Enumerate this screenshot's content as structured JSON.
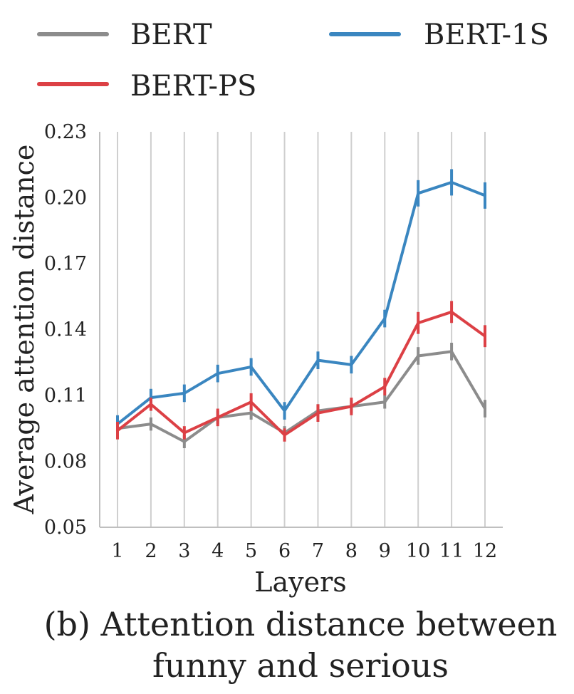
{
  "chart_data": {
    "type": "line",
    "title": "",
    "caption_lines": [
      "(b) Attention distance between",
      "funny and serious"
    ],
    "xlabel": "Layers",
    "ylabel": "Average attention distance",
    "x": [
      1,
      2,
      3,
      4,
      5,
      6,
      7,
      8,
      9,
      10,
      11,
      12
    ],
    "x_tick_labels": [
      "1",
      "2",
      "3",
      "4",
      "5",
      "6",
      "7",
      "8",
      "9",
      "10",
      "11",
      "12"
    ],
    "ylim": [
      0.05,
      0.23
    ],
    "y_ticks": [
      0.05,
      0.08,
      0.11,
      0.14,
      0.17,
      0.2,
      0.23
    ],
    "y_tick_labels": [
      "0.05",
      "0.08",
      "0.11",
      "0.14",
      "0.17",
      "0.20",
      "0.23"
    ],
    "grid": "vertical",
    "legend_position": "top",
    "series": [
      {
        "name": "BERT",
        "color": "#8c8c8c",
        "values": [
          0.095,
          0.097,
          0.089,
          0.1,
          0.102,
          0.093,
          0.103,
          0.105,
          0.107,
          0.128,
          0.13,
          0.104
        ],
        "error": [
          0.003,
          0.003,
          0.003,
          0.003,
          0.003,
          0.003,
          0.003,
          0.003,
          0.003,
          0.004,
          0.004,
          0.004
        ]
      },
      {
        "name": "BERT-1S",
        "color": "#3a86c0",
        "values": [
          0.097,
          0.109,
          0.111,
          0.12,
          0.123,
          0.103,
          0.126,
          0.124,
          0.145,
          0.202,
          0.207,
          0.201
        ],
        "error": [
          0.004,
          0.004,
          0.004,
          0.004,
          0.004,
          0.004,
          0.004,
          0.004,
          0.004,
          0.006,
          0.006,
          0.006
        ]
      },
      {
        "name": "BERT-PS",
        "color": "#dc4045",
        "values": [
          0.094,
          0.106,
          0.093,
          0.1,
          0.107,
          0.092,
          0.102,
          0.105,
          0.114,
          0.143,
          0.148,
          0.137
        ],
        "error": [
          0.004,
          0.003,
          0.003,
          0.004,
          0.004,
          0.003,
          0.004,
          0.004,
          0.004,
          0.005,
          0.005,
          0.005
        ]
      }
    ]
  }
}
